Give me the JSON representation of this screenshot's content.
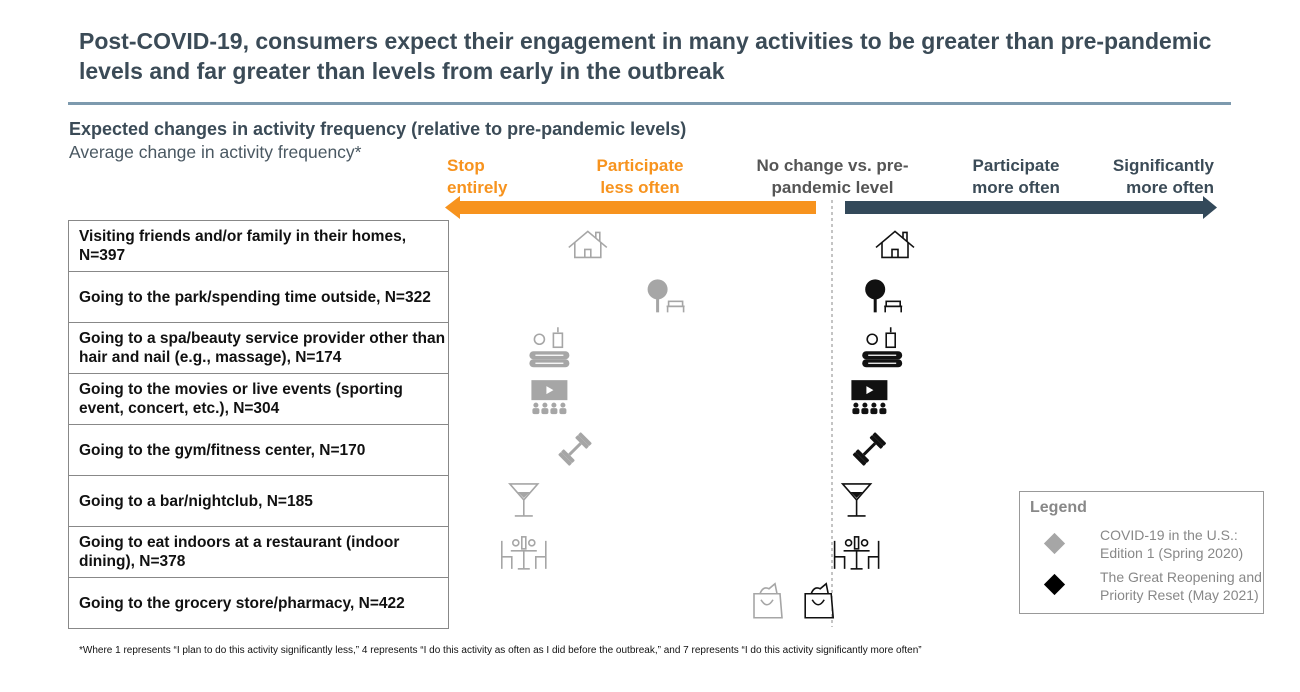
{
  "title": "Post-COVID-19, consumers expect their engagement in many activities to be greater than pre-pandemic levels and far greater than levels from early in the outbreak",
  "subtitle": "Expected changes in activity frequency (relative to pre-pandemic levels)",
  "subsubtitle": "Average change in activity frequency*",
  "scale_headers": {
    "stop": "Stop entirely",
    "less": "Participate less often",
    "none": "No change vs. pre-pandemic level",
    "more": "Participate more often",
    "sig_more": "Significantly more often"
  },
  "colors": {
    "orange": "#f7931e",
    "navy": "#33495a",
    "series_2020": "#a6a6a6",
    "series_2021": "#111111"
  },
  "legend": {
    "title": "Legend",
    "items": [
      {
        "label": "COVID-19 in the U.S.: Edition 1 (Spring 2020)",
        "color": "#a6a6a6"
      },
      {
        "label": "The Great Reopening and Priority Reset (May 2021)",
        "color": "#000000"
      }
    ]
  },
  "chart_data": {
    "type": "scatter",
    "scale": {
      "min": 1,
      "neutral": 4,
      "max": 7
    },
    "categories": [
      "Visiting friends and/or family in their homes, N=397",
      "Going to the park/spending time outside, N=322",
      "Going to a spa/beauty service provider other than hair and nail (e.g., massage), N=174",
      "Going to the movies or live events (sporting event, concert, etc.), N=304",
      "Going to the gym/fitness center, N=170",
      "Going to a bar/nightclub, N=185",
      "Going to eat indoors at a restaurant (indoor dining), N=378",
      "Going to the grocery store/pharmacy, N=422"
    ],
    "icons": [
      "house-icon",
      "tree-bench-icon",
      "spa-icon",
      "movie-screen-icon",
      "dumbbell-icon",
      "martini-icon",
      "dining-table-icon",
      "shopping-bag-icon"
    ],
    "series": [
      {
        "name": "COVID-19 in the U.S.: Edition 1 (Spring 2020)",
        "values": [
          2.1,
          2.7,
          1.8,
          1.8,
          2.0,
          1.6,
          1.6,
          3.5
        ]
      },
      {
        "name": "The Great Reopening and Priority Reset (May 2021)",
        "values": [
          4.5,
          4.4,
          4.4,
          4.3,
          4.3,
          4.2,
          4.2,
          3.9
        ]
      }
    ]
  },
  "footnote": "*Where 1 represents “I plan to do this activity significantly less,” 4 represents “I do this activity as often as I did before the outbreak,” and 7 represents “I do this activity significantly more often”"
}
